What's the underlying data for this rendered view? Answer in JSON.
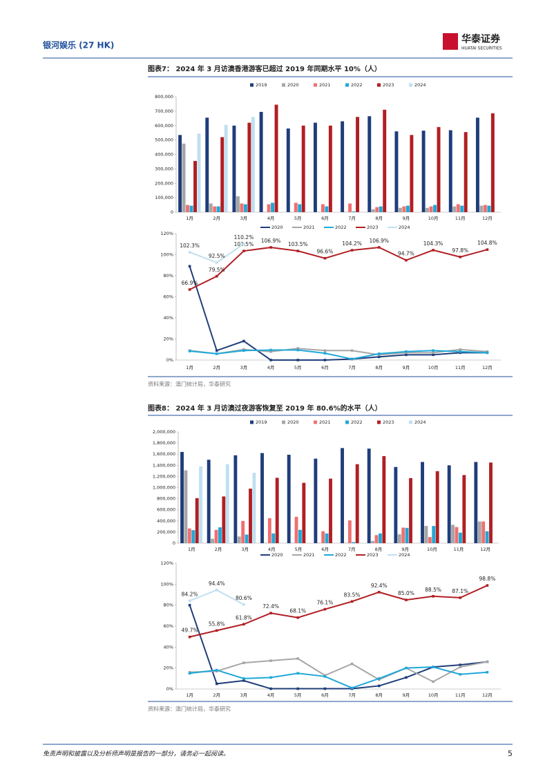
{
  "header": {
    "company": "银河娱乐 (27 HK)",
    "broker_name": "华泰证券",
    "broker_name_en": "HUATAI SECURITIES"
  },
  "figures": [
    {
      "title": "图表7：  2024 年 3 月访澳香港游客已超过 2019 年同期水平 10%（人）",
      "source": "资料来源：澳门统计局，华泰研究"
    },
    {
      "title": "图表8：  2024 年 3 月访澳过夜游客恢复至 2019 年 80.6%的水平（人）",
      "source": "资料来源：澳门统计局，华泰研究"
    }
  ],
  "chart_data": [
    {
      "type": "bar",
      "categories": [
        "1月",
        "2月",
        "3月",
        "4月",
        "5月",
        "6月",
        "7月",
        "8月",
        "9月",
        "10月",
        "11月",
        "12月"
      ],
      "ylim": [
        0,
        800000
      ],
      "yticks": [
        0,
        {
          "value": 100000,
          "label": "100,000"
        },
        {
          "value": 200000,
          "label": "200,000"
        },
        {
          "value": 300000,
          "label": "300,000"
        },
        {
          "value": 400000,
          "label": "400,000"
        },
        {
          "value": 500000,
          "label": "500,000"
        },
        {
          "value": 600000,
          "label": "600,000"
        },
        {
          "value": 700000,
          "label": "700,000"
        },
        {
          "value": 800000,
          "label": "800,000"
        }
      ],
      "series": [
        {
          "name": "2019",
          "color": "#1f3d7a",
          "values": [
            535000,
            655000,
            600000,
            695000,
            580000,
            620000,
            630000,
            665000,
            560000,
            565000,
            568000,
            655000
          ]
        },
        {
          "name": "2020",
          "color": "#a6a6a6",
          "values": [
            475000,
            60000,
            110000,
            2000,
            2000,
            2000,
            2000,
            20000,
            30000,
            30000,
            40000,
            45000
          ]
        },
        {
          "name": "2021",
          "color": "#f07070",
          "values": [
            50000,
            40000,
            60000,
            55000,
            65000,
            55000,
            60000,
            35000,
            40000,
            40000,
            55000,
            50000
          ]
        },
        {
          "name": "2022",
          "color": "#1fa8d8",
          "values": [
            45000,
            40000,
            55000,
            65000,
            55000,
            40000,
            5000,
            40000,
            45000,
            50000,
            45000,
            45000
          ]
        },
        {
          "name": "2023",
          "color": "#b11f24",
          "values": [
            355000,
            520000,
            620000,
            745000,
            600000,
            600000,
            660000,
            710000,
            535000,
            590000,
            555000,
            685000
          ]
        },
        {
          "name": "2024",
          "color": "#bfe0f0",
          "values": [
            545000,
            605000,
            660000,
            null,
            null,
            null,
            null,
            null,
            null,
            null,
            null,
            null
          ]
        }
      ]
    },
    {
      "type": "line",
      "categories": [
        "1月",
        "2月",
        "3月",
        "4月",
        "5月",
        "6月",
        "7月",
        "8月",
        "9月",
        "10月",
        "11月",
        "12月"
      ],
      "ylim": [
        0,
        120
      ],
      "yticks": [
        {
          "value": 0,
          "label": "0%"
        },
        {
          "value": 20,
          "label": "20%"
        },
        {
          "value": 40,
          "label": "40%"
        },
        {
          "value": 60,
          "label": "60%"
        },
        {
          "value": 80,
          "label": "80%"
        },
        {
          "value": 100,
          "label": "100%"
        },
        {
          "value": 120,
          "label": "120%"
        }
      ],
      "series": [
        {
          "name": "2020",
          "color": "#1f3d7a",
          "values": [
            89,
            9,
            18,
            0,
            0,
            0,
            1,
            3,
            5,
            5,
            7,
            7
          ]
        },
        {
          "name": "2021",
          "color": "#a6a6a6",
          "values": [
            9,
            6,
            10,
            8,
            11,
            9,
            9,
            5,
            7,
            7,
            10,
            8
          ]
        },
        {
          "name": "2022",
          "color": "#1fa8d8",
          "values": [
            8.5,
            6,
            9,
            9.5,
            9.5,
            6.5,
            1,
            6,
            8,
            9,
            8,
            7
          ]
        },
        {
          "name": "2023",
          "color": "#b11f24",
          "values": [
            66.9,
            79.5,
            103.5,
            106.9,
            103.5,
            96.6,
            104.2,
            106.9,
            94.7,
            104.3,
            97.8,
            104.8
          ],
          "value_labels": [
            "66.9%",
            "79.5%",
            "103.5%",
            "106.9%",
            "103.5%",
            "96.6%",
            "104.2%",
            "106.9%",
            "94.7%",
            "104.3%",
            "97.8%",
            "104.8%"
          ]
        },
        {
          "name": "2024",
          "color": "#bfe0f0",
          "values": [
            102.3,
            92.5,
            110.2,
            null,
            null,
            null,
            null,
            null,
            null,
            null,
            null,
            null
          ],
          "value_labels": [
            "102.3%",
            "92.5%",
            "110.2%",
            null,
            null,
            null,
            null,
            null,
            null,
            null,
            null,
            null
          ]
        }
      ]
    },
    {
      "type": "bar",
      "categories": [
        "1月",
        "2月",
        "3月",
        "4月",
        "5月",
        "6月",
        "7月",
        "8月",
        "9月",
        "10月",
        "11月",
        "12月"
      ],
      "ylim": [
        0,
        2000000
      ],
      "yticks": [
        0,
        {
          "value": 200000,
          "label": "200,000"
        },
        {
          "value": 400000,
          "label": "400,000"
        },
        {
          "value": 600000,
          "label": "600,000"
        },
        {
          "value": 800000,
          "label": "800,000"
        },
        {
          "value": 1000000,
          "label": "1,000,000"
        },
        {
          "value": 1200000,
          "label": "1,200,000"
        },
        {
          "value": 1400000,
          "label": "1,400,000"
        },
        {
          "value": 1600000,
          "label": "1,600,000"
        },
        {
          "value": 1800000,
          "label": "1,800,000"
        },
        {
          "value": 2000000,
          "label": "2,000,000"
        }
      ],
      "series": [
        {
          "name": "2019",
          "color": "#1f3d7a",
          "values": [
            1640000,
            1500000,
            1580000,
            1620000,
            1590000,
            1520000,
            1710000,
            1700000,
            1370000,
            1460000,
            1400000,
            1460000
          ]
        },
        {
          "name": "2020",
          "color": "#a6a6a6",
          "values": [
            1310000,
            80000,
            120000,
            5000,
            5000,
            5000,
            5000,
            40000,
            160000,
            310000,
            330000,
            390000
          ]
        },
        {
          "name": "2021",
          "color": "#f07070",
          "values": [
            265000,
            240000,
            400000,
            450000,
            475000,
            215000,
            410000,
            145000,
            280000,
            110000,
            290000,
            390000
          ]
        },
        {
          "name": "2022",
          "color": "#1fa8d8",
          "values": [
            235000,
            285000,
            155000,
            175000,
            240000,
            175000,
            20000,
            175000,
            275000,
            310000,
            190000,
            215000
          ]
        },
        {
          "name": "2023",
          "color": "#b11f24",
          "values": [
            810000,
            840000,
            980000,
            1175000,
            1085000,
            1160000,
            1420000,
            1565000,
            1170000,
            1295000,
            1225000,
            1450000
          ]
        },
        {
          "name": "2024",
          "color": "#bfe0f0",
          "values": [
            1380000,
            1420000,
            1265000,
            null,
            null,
            null,
            null,
            null,
            null,
            null,
            null,
            null
          ]
        }
      ]
    },
    {
      "type": "line",
      "categories": [
        "1月",
        "2月",
        "3月",
        "4月",
        "5月",
        "6月",
        "7月",
        "8月",
        "9月",
        "10月",
        "11月",
        "12月"
      ],
      "ylim": [
        0,
        120
      ],
      "yticks": [
        {
          "value": 0,
          "label": "0%"
        },
        {
          "value": 20,
          "label": "20%"
        },
        {
          "value": 40,
          "label": "40%"
        },
        {
          "value": 60,
          "label": "60%"
        },
        {
          "value": 80,
          "label": "80%"
        },
        {
          "value": 100,
          "label": "100%"
        },
        {
          "value": 120,
          "label": "120%"
        }
      ],
      "series": [
        {
          "name": "2020",
          "color": "#1f3d7a",
          "values": [
            80,
            5,
            8,
            0.3,
            0.3,
            0.3,
            0.3,
            3,
            11,
            21,
            23,
            26
          ]
        },
        {
          "name": "2021",
          "color": "#a6a6a6",
          "values": [
            16,
            17,
            25,
            27,
            29,
            13,
            24,
            9,
            20,
            7,
            21,
            26
          ]
        },
        {
          "name": "2022",
          "color": "#1fa8d8",
          "values": [
            15,
            18,
            10,
            11,
            15,
            12,
            1,
            10,
            20,
            21,
            14,
            16
          ]
        },
        {
          "name": "2023",
          "color": "#b11f24",
          "values": [
            49.7,
            55.8,
            61.8,
            72.4,
            68.1,
            76.1,
            83.5,
            92.4,
            85.0,
            88.5,
            87.1,
            98.8
          ],
          "value_labels": [
            "49.7%",
            "55.8%",
            "61.8%",
            "72.4%",
            "68.1%",
            "76.1%",
            "83.5%",
            "92.4%",
            "85.0%",
            "88.5%",
            "87.1%",
            "98.8%"
          ]
        },
        {
          "name": "2024",
          "color": "#bfe0f0",
          "values": [
            84.2,
            94.4,
            80.6,
            null,
            null,
            null,
            null,
            null,
            null,
            null,
            null,
            null
          ],
          "value_labels": [
            "84.2%",
            "94.4%",
            "80.6%",
            null,
            null,
            null,
            null,
            null,
            null,
            null,
            null,
            null
          ]
        }
      ]
    }
  ],
  "footer": {
    "disclaimer": "免责声明和披露以及分析师声明是报告的一部分，请务必一起阅读。",
    "page": "5"
  }
}
